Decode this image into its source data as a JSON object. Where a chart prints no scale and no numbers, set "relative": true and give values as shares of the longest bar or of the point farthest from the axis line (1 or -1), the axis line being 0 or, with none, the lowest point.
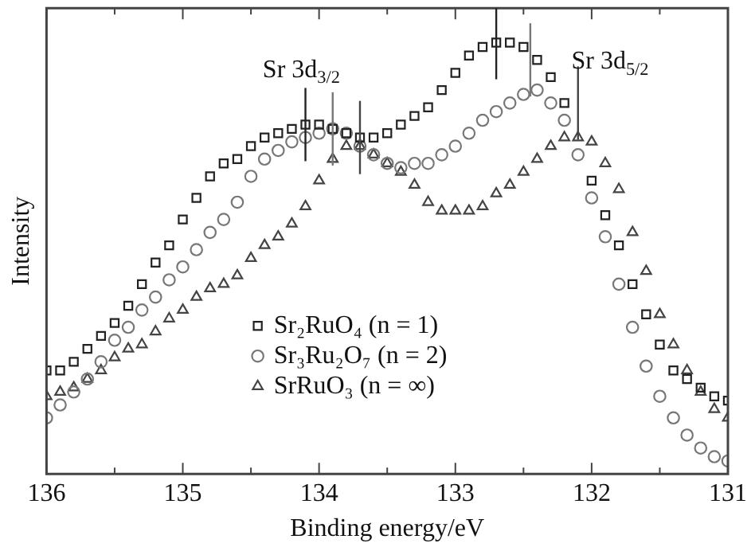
{
  "chart_data": {
    "type": "scatter",
    "xlabel": "Binding energy/eV",
    "ylabel": "Intensity",
    "relative": true,
    "tick_labels": "x",
    "grid": false,
    "legend": "bottom",
    "xlim": [
      136,
      131
    ],
    "xticks": [
      136,
      {
        "value": 135.5,
        "label": null
      },
      135,
      {
        "value": 134.5,
        "label": null
      },
      134,
      {
        "value": 133.5,
        "label": null
      },
      133,
      {
        "value": 132.5,
        "label": null
      },
      132,
      {
        "value": 131.5,
        "label": null
      },
      131
    ],
    "x": [
      136,
      135.9,
      135.8,
      135.7,
      135.6,
      135.5,
      135.4,
      135.3,
      135.2,
      135.1,
      135,
      134.9,
      134.8,
      134.7,
      134.6,
      134.5,
      134.4,
      134.3,
      134.2,
      134.1,
      134,
      133.9,
      133.8,
      133.7,
      133.6,
      133.5,
      133.4,
      133.3,
      133.2,
      133.1,
      133,
      132.9,
      132.8,
      132.7,
      132.6,
      132.5,
      132.4,
      132.3,
      132.2,
      132.1,
      132,
      131.9,
      131.8,
      131.7,
      131.6,
      131.5,
      131.4,
      131.3,
      131.2,
      131.1,
      131
    ],
    "series": [
      {
        "name": "Sr₂RuO₄ (n = 1)",
        "color": "#222222",
        "marker": "square",
        "values": [
          0.24,
          0.24,
          0.26,
          0.29,
          0.32,
          0.35,
          0.39,
          0.44,
          0.49,
          0.53,
          0.59,
          0.64,
          0.69,
          0.72,
          0.73,
          0.76,
          0.78,
          0.79,
          0.8,
          0.81,
          0.81,
          0.8,
          0.79,
          0.78,
          0.78,
          0.79,
          0.81,
          0.83,
          0.85,
          0.89,
          0.93,
          0.97,
          0.99,
          1,
          1,
          0.99,
          0.96,
          0.92,
          0.86,
          null,
          0.68,
          0.6,
          0.53,
          0.44,
          0.37,
          0.3,
          0.24,
          0.22,
          0.2,
          0.18,
          0.17
        ]
      },
      {
        "name": "Sr₃Ru₂O₇ (n = 2)",
        "color": "#777777",
        "marker": "circle",
        "values": [
          0.13,
          0.16,
          0.19,
          0.22,
          0.26,
          0.31,
          0.34,
          0.38,
          0.41,
          0.45,
          0.48,
          0.52,
          0.56,
          0.59,
          0.63,
          0.69,
          0.73,
          0.75,
          0.77,
          0.78,
          0.79,
          0.8,
          0.79,
          0.76,
          0.74,
          0.72,
          0.71,
          0.72,
          0.72,
          0.74,
          0.76,
          0.79,
          0.82,
          0.84,
          0.86,
          0.88,
          0.89,
          0.86,
          0.82,
          0.74,
          0.64,
          0.55,
          0.44,
          0.34,
          0.25,
          0.18,
          0.13,
          0.09,
          0.06,
          0.04,
          0.03
        ]
      },
      {
        "name": "SrRuO₃ (n = ∞)",
        "color": "#444444",
        "marker": "triangle",
        "values": [
          0.18,
          0.19,
          0.2,
          0.22,
          0.24,
          0.27,
          0.29,
          0.3,
          0.33,
          0.36,
          0.38,
          0.41,
          0.43,
          0.44,
          0.46,
          0.5,
          0.53,
          0.55,
          0.58,
          0.62,
          0.68,
          0.73,
          0.76,
          0.76,
          0.74,
          0.72,
          0.7,
          0.67,
          0.63,
          0.61,
          0.61,
          0.61,
          0.62,
          0.65,
          0.67,
          0.7,
          0.73,
          0.76,
          0.78,
          0.78,
          0.77,
          0.72,
          0.66,
          0.56,
          0.47,
          0.37,
          0.3,
          0.24,
          0.19,
          0.15,
          0.13
        ]
      }
    ],
    "ref_lines": [
      {
        "axis": "x",
        "value": 134.1,
        "color": "#222222"
      },
      {
        "axis": "x",
        "value": 133.9,
        "color": "#777777"
      },
      {
        "axis": "x",
        "value": 133.7,
        "color": "#444444"
      },
      {
        "axis": "x",
        "value": 132.7,
        "color": "#222222"
      },
      {
        "axis": "x",
        "value": 132.45,
        "color": "#777777"
      },
      {
        "axis": "x",
        "value": 132.1,
        "color": "#444444"
      }
    ],
    "annotations": [
      "Sr 3d$_{3/2}$",
      "Sr 3d$_{5/2}$"
    ]
  }
}
